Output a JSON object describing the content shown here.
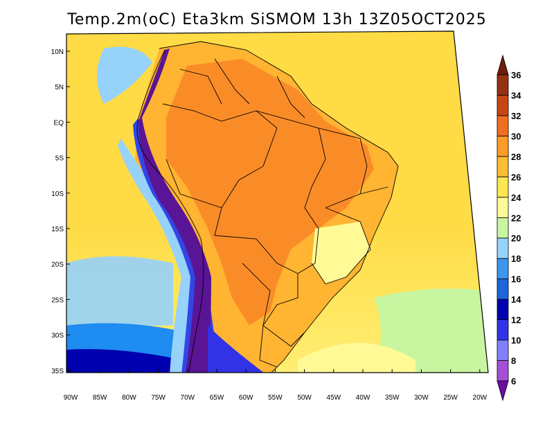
{
  "title": "Temp.2m(oC) Eta3km SiSMOM 13h 13Z05OCT2025",
  "lat_labels": [
    "10N",
    "5N",
    "EQ",
    "5S",
    "10S",
    "15S",
    "20S",
    "25S",
    "30S",
    "35S"
  ],
  "lon_labels": [
    "90W",
    "85W",
    "80W",
    "75W",
    "70W",
    "65W",
    "60W",
    "55W",
    "50W",
    "45W",
    "40W",
    "35W",
    "30W",
    "25W",
    "20W"
  ],
  "colorbar": {
    "levels": [
      "6",
      "8",
      "10",
      "12",
      "14",
      "16",
      "18",
      "20",
      "22",
      "24",
      "26",
      "28",
      "30",
      "32",
      "34",
      "36"
    ],
    "colors": [
      "#6a0fa0",
      "#a54fd6",
      "#8080ff",
      "#3232e6",
      "#0000b0",
      "#1e64dc",
      "#3c96f0",
      "#96d2fa",
      "#c8f5a0",
      "#fffa96",
      "#ffe650",
      "#ffbe32",
      "#ff9b28",
      "#f06e1e",
      "#c84614",
      "#963214",
      "#6e1e0a"
    ]
  },
  "palette": {
    "ocean_north": "#ffdc46",
    "ocean_south": "#fff078",
    "continent_hot": "#fa8c28",
    "continent_warm": "#ffb432",
    "andes_cold": "#5a1496",
    "andes_mid": "#3246e6",
    "south_cold": "#1e8cf0",
    "coast_cool": "#96d2fa",
    "border": "#000000"
  }
}
